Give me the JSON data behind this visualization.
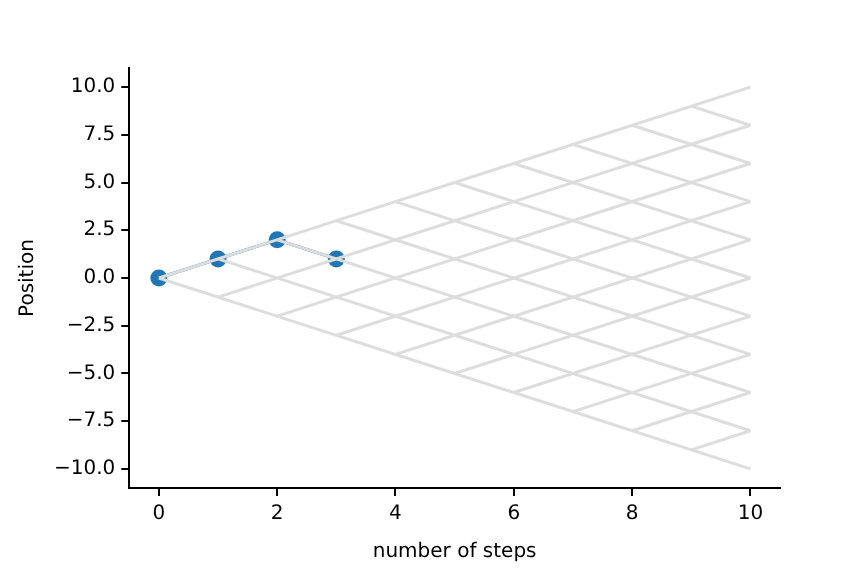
{
  "chart_data": {
    "type": "line",
    "xlabel": "number of steps",
    "ylabel": "Position",
    "xlim": [
      -0.5,
      10.5
    ],
    "ylim": [
      -11,
      11
    ],
    "xticks": [
      0,
      2,
      4,
      6,
      8,
      10
    ],
    "yticks": [
      {
        "value": -10,
        "label": "−10.0"
      },
      {
        "value": -7.5,
        "label": "−7.5"
      },
      {
        "value": -5,
        "label": "−5.0"
      },
      {
        "value": -2.5,
        "label": "−2.5"
      },
      {
        "value": 0,
        "label": "0.0"
      },
      {
        "value": 2.5,
        "label": "2.5"
      },
      {
        "value": 5,
        "label": "5.0"
      },
      {
        "value": 7.5,
        "label": "7.5"
      },
      {
        "value": 10,
        "label": "10.0"
      }
    ],
    "grid": false,
    "legend": false,
    "series": [
      {
        "color": "#dddddd",
        "marker": "none",
        "x": [
          0,
          10
        ],
        "values": [
          0,
          10
        ]
      },
      {
        "color": "#dddddd",
        "marker": "none",
        "x": [
          1,
          10
        ],
        "values": [
          -1,
          8
        ]
      },
      {
        "color": "#dddddd",
        "marker": "none",
        "x": [
          2,
          10
        ],
        "values": [
          -2,
          6
        ]
      },
      {
        "color": "#dddddd",
        "marker": "none",
        "x": [
          3,
          10
        ],
        "values": [
          -3,
          4
        ]
      },
      {
        "color": "#dddddd",
        "marker": "none",
        "x": [
          4,
          10
        ],
        "values": [
          -4,
          2
        ]
      },
      {
        "color": "#dddddd",
        "marker": "none",
        "x": [
          5,
          10
        ],
        "values": [
          -5,
          0
        ]
      },
      {
        "color": "#dddddd",
        "marker": "none",
        "x": [
          6,
          10
        ],
        "values": [
          -6,
          -2
        ]
      },
      {
        "color": "#dddddd",
        "marker": "none",
        "x": [
          7,
          10
        ],
        "values": [
          -7,
          -4
        ]
      },
      {
        "color": "#dddddd",
        "marker": "none",
        "x": [
          8,
          10
        ],
        "values": [
          -8,
          -6
        ]
      },
      {
        "color": "#dddddd",
        "marker": "none",
        "x": [
          9,
          10
        ],
        "values": [
          -9,
          -8
        ]
      },
      {
        "color": "#dddddd",
        "marker": "none",
        "x": [
          0,
          10
        ],
        "values": [
          0,
          -10
        ]
      },
      {
        "color": "#dddddd",
        "marker": "none",
        "x": [
          1,
          10
        ],
        "values": [
          1,
          -8
        ]
      },
      {
        "color": "#dddddd",
        "marker": "none",
        "x": [
          2,
          10
        ],
        "values": [
          2,
          -6
        ]
      },
      {
        "color": "#dddddd",
        "marker": "none",
        "x": [
          3,
          10
        ],
        "values": [
          3,
          -4
        ]
      },
      {
        "color": "#dddddd",
        "marker": "none",
        "x": [
          4,
          10
        ],
        "values": [
          4,
          -2
        ]
      },
      {
        "color": "#dddddd",
        "marker": "none",
        "x": [
          5,
          10
        ],
        "values": [
          5,
          0
        ]
      },
      {
        "color": "#dddddd",
        "marker": "none",
        "x": [
          6,
          10
        ],
        "values": [
          6,
          2
        ]
      },
      {
        "color": "#dddddd",
        "marker": "none",
        "x": [
          7,
          10
        ],
        "values": [
          7,
          4
        ]
      },
      {
        "color": "#dddddd",
        "marker": "none",
        "x": [
          8,
          10
        ],
        "values": [
          8,
          6
        ]
      },
      {
        "color": "#dddddd",
        "marker": "none",
        "x": [
          9,
          10
        ],
        "values": [
          9,
          8
        ]
      },
      {
        "color": "#1f77b4",
        "marker": "circle",
        "x": [
          0,
          1,
          2,
          3
        ],
        "values": [
          0,
          1,
          2,
          1
        ]
      }
    ]
  }
}
